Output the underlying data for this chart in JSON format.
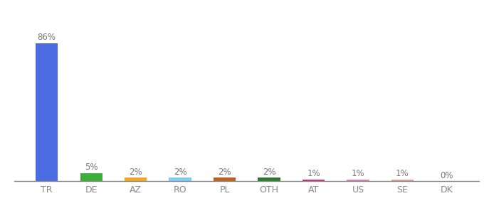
{
  "categories": [
    "TR",
    "DE",
    "AZ",
    "RO",
    "PL",
    "OTH",
    "AT",
    "US",
    "SE",
    "DK"
  ],
  "values": [
    86,
    5,
    2,
    2,
    2,
    2,
    1,
    1,
    1,
    0
  ],
  "labels": [
    "86%",
    "5%",
    "2%",
    "2%",
    "2%",
    "2%",
    "1%",
    "1%",
    "1%",
    "0%"
  ],
  "bar_colors": [
    "#4b6be0",
    "#3aaf3a",
    "#f5a623",
    "#7ecef5",
    "#c06020",
    "#2d7a2d",
    "#e0226e",
    "#e87db8",
    "#e8a090",
    "#cccccc"
  ],
  "background_color": "#ffffff",
  "ylim": [
    0,
    97
  ],
  "label_fontsize": 8.5,
  "tick_fontsize": 9,
  "bar_width": 0.5
}
